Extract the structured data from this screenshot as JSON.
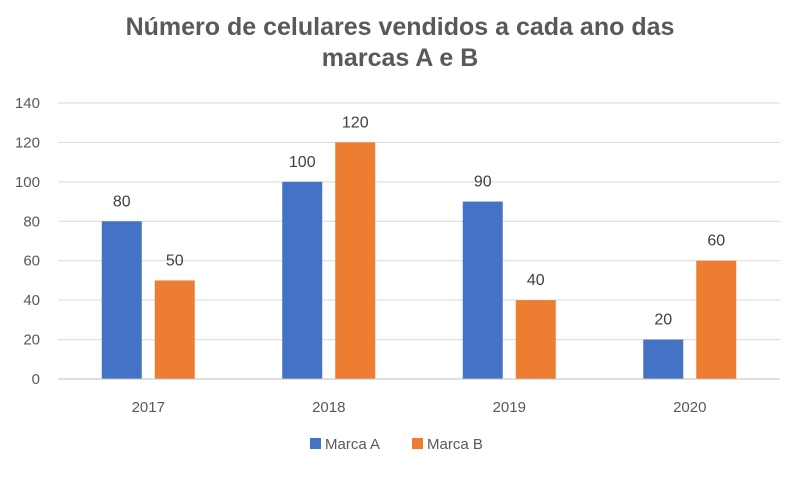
{
  "chart_data": {
    "type": "bar",
    "title_line1": "Número de celulares vendidos a cada ano das",
    "title_line2": "marcas A e B",
    "categories": [
      "2017",
      "2018",
      "2019",
      "2020"
    ],
    "series": [
      {
        "name": "Marca A",
        "values": [
          80,
          100,
          90,
          20
        ],
        "color": "#4472C4"
      },
      {
        "name": "Marca B",
        "values": [
          50,
          120,
          40,
          60
        ],
        "color": "#ED7D31"
      }
    ],
    "ylim": [
      0,
      140
    ],
    "yticks": [
      0,
      20,
      40,
      60,
      80,
      100,
      120,
      140
    ],
    "grid": true,
    "legend_position": "bottom"
  }
}
